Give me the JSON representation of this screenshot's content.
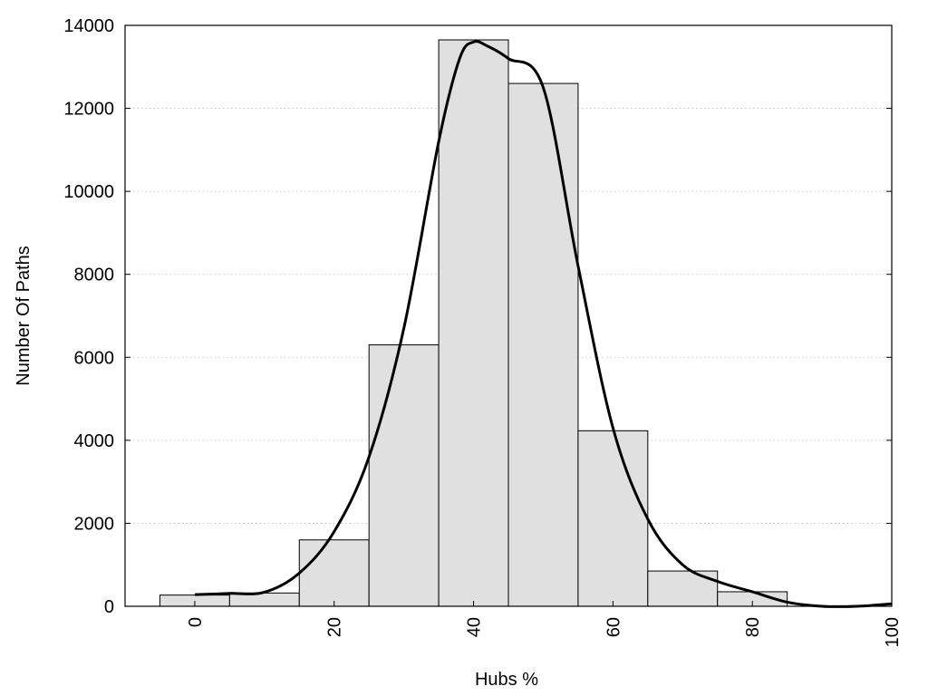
{
  "chart_data": {
    "type": "bar",
    "xlabel": "Hubs %",
    "ylabel": "Number Of Paths",
    "xlim": [
      -10,
      100
    ],
    "ylim": [
      0,
      14000
    ],
    "grid": "horizontal-dotted",
    "x_ticks": [
      0,
      20,
      40,
      60,
      80,
      100
    ],
    "y_ticks": [
      0,
      2000,
      4000,
      6000,
      8000,
      10000,
      12000,
      14000
    ],
    "bars": [
      {
        "x": 0,
        "value": 270
      },
      {
        "x": 10,
        "value": 320
      },
      {
        "x": 20,
        "value": 1600
      },
      {
        "x": 30,
        "value": 6300
      },
      {
        "x": 40,
        "value": 13650
      },
      {
        "x": 50,
        "value": 12600
      },
      {
        "x": 60,
        "value": 4230
      },
      {
        "x": 70,
        "value": 850
      },
      {
        "x": 80,
        "value": 350
      },
      {
        "x": 90,
        "value": 0
      }
    ],
    "bar_width": 10,
    "curve": {
      "x": [
        0,
        5,
        10,
        15,
        20,
        25,
        30,
        35,
        38,
        40,
        42,
        45,
        50,
        55,
        60,
        65,
        70,
        75,
        80,
        85,
        90,
        95,
        100
      ],
      "y": [
        280,
        310,
        340,
        800,
        1800,
        3600,
        6700,
        11200,
        13200,
        13600,
        13500,
        13200,
        12500,
        8200,
        4300,
        2100,
        1000,
        600,
        350,
        100,
        0,
        0,
        60
      ]
    },
    "colors": {
      "bar_fill": "#e0e0e0",
      "bar_stroke": "#000000",
      "curve": "#000000",
      "grid": "#bbbbbb"
    }
  }
}
